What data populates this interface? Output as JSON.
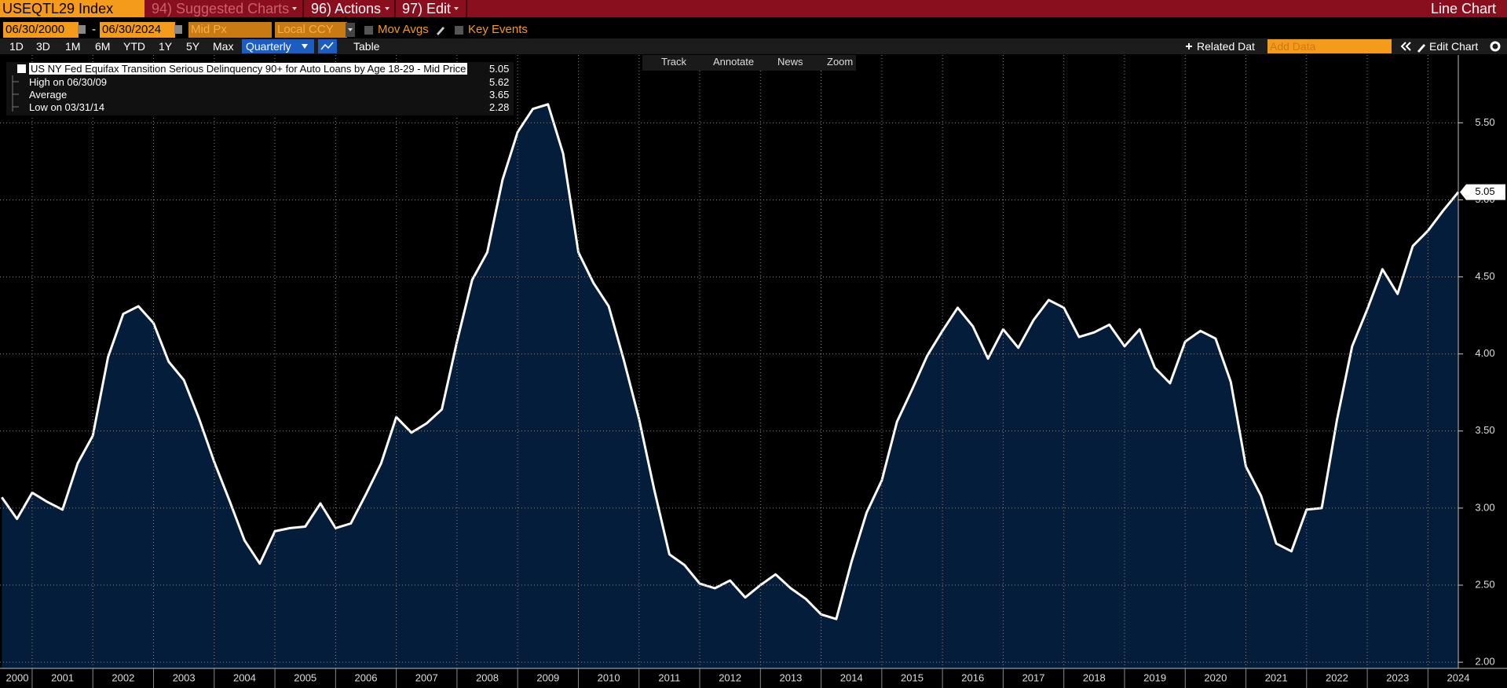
{
  "toolbar": {
    "ticker": "USEQTL29 Index",
    "suggested": "94) Suggested Charts",
    "actions": "96) Actions",
    "edit": "97) Edit",
    "chart_kind": "Line Chart",
    "start_date": "06/30/2000",
    "date_separator": "-",
    "end_date": "06/30/2024",
    "field": "Mid Px",
    "currency": "Local CCY",
    "mov_avgs": "Mov Avgs",
    "key_events": "Key Events",
    "periods": [
      "1D",
      "3D",
      "1M",
      "6M",
      "YTD",
      "1Y",
      "5Y",
      "Max"
    ],
    "frequency": "Quarterly",
    "table": "Table",
    "related": "Related Dat",
    "add_data": "Add Data",
    "edit_chart": "Edit Chart",
    "tools": [
      "Track",
      "Annotate",
      "News",
      "Zoom"
    ]
  },
  "chart_data": {
    "type": "area",
    "x": [
      2000.5,
      2000.75,
      2001,
      2001.25,
      2001.5,
      2001.75,
      2002,
      2002.25,
      2002.5,
      2002.75,
      2003,
      2003.25,
      2003.5,
      2003.75,
      2004,
      2004.25,
      2004.5,
      2004.75,
      2005,
      2005.25,
      2005.5,
      2005.75,
      2006,
      2006.25,
      2006.5,
      2006.75,
      2007,
      2007.25,
      2007.5,
      2007.75,
      2008,
      2008.25,
      2008.5,
      2008.75,
      2009,
      2009.25,
      2009.5,
      2009.75,
      2010,
      2010.25,
      2010.5,
      2010.75,
      2011,
      2011.25,
      2011.5,
      2011.75,
      2012,
      2012.25,
      2012.5,
      2012.75,
      2013,
      2013.25,
      2013.5,
      2013.75,
      2014,
      2014.25,
      2014.5,
      2014.75,
      2015,
      2015.25,
      2015.5,
      2015.75,
      2016,
      2016.25,
      2016.5,
      2016.75,
      2017,
      2017.25,
      2017.5,
      2017.75,
      2018,
      2018.25,
      2018.5,
      2018.75,
      2019,
      2019.25,
      2019.5,
      2019.75,
      2020,
      2020.25,
      2020.5,
      2020.75,
      2021,
      2021.25,
      2021.5,
      2021.75,
      2022,
      2022.25,
      2022.5,
      2022.75,
      2023,
      2023.25,
      2023.5,
      2023.75,
      2024,
      2024.25,
      2024.5
    ],
    "series": [
      {
        "name": "US NY Fed Equifax Transition Serious Delinquency 90+ for Auto Loans by Age 18-29 - Mid Price",
        "color": "#ffffff",
        "fill": "#031d3b",
        "values": [
          3.07,
          2.93,
          3.1,
          3.04,
          2.99,
          3.29,
          3.47,
          3.98,
          4.26,
          4.31,
          4.2,
          3.95,
          3.83,
          3.58,
          3.3,
          3.05,
          2.79,
          2.64,
          2.85,
          2.87,
          2.88,
          3.03,
          2.87,
          2.9,
          3.09,
          3.29,
          3.59,
          3.49,
          3.55,
          3.64,
          4.08,
          4.48,
          4.66,
          5.13,
          5.44,
          5.59,
          5.62,
          5.3,
          4.66,
          4.46,
          4.31,
          3.96,
          3.58,
          3.12,
          2.7,
          2.63,
          2.51,
          2.48,
          2.53,
          2.42,
          2.5,
          2.57,
          2.48,
          2.41,
          2.31,
          2.28,
          2.65,
          2.97,
          3.18,
          3.56,
          3.77,
          3.99,
          4.15,
          4.3,
          4.18,
          3.97,
          4.16,
          4.04,
          4.22,
          4.35,
          4.3,
          4.11,
          4.14,
          4.19,
          4.05,
          4.16,
          3.91,
          3.81,
          4.08,
          4.15,
          4.1,
          3.82,
          3.27,
          3.08,
          2.77,
          2.72,
          2.99,
          3.0,
          3.57,
          4.05,
          4.29,
          4.55,
          4.39,
          4.7,
          4.8,
          4.93,
          5.05
        ]
      }
    ],
    "legend_stats": [
      {
        "label": "High on 06/30/09",
        "value": 5.62
      },
      {
        "label": "Average",
        "value": 3.65
      },
      {
        "label": "Low on 03/31/14",
        "value": 2.28
      }
    ],
    "xlim": [
      2000.47,
      2024.5
    ],
    "xticks": [
      2000,
      2001,
      2002,
      2003,
      2004,
      2005,
      2006,
      2007,
      2008,
      2009,
      2010,
      2011,
      2012,
      2013,
      2014,
      2015,
      2016,
      2017,
      2018,
      2019,
      2020,
      2021,
      2022,
      2023,
      2024
    ],
    "ylim": [
      1.96,
      5.94
    ],
    "yticks": [
      {
        "value": 2,
        "label": "2.00"
      },
      {
        "value": 2.5,
        "label": "2.50"
      },
      {
        "value": 3,
        "label": "3.00"
      },
      {
        "value": 3.5,
        "label": "3.50"
      },
      {
        "value": 4,
        "label": "4.00"
      },
      {
        "value": 4.5,
        "label": "4.50"
      },
      {
        "value": 5,
        "label": "5.00"
      },
      {
        "value": 5.5,
        "label": "5.50"
      }
    ],
    "grid": true
  }
}
